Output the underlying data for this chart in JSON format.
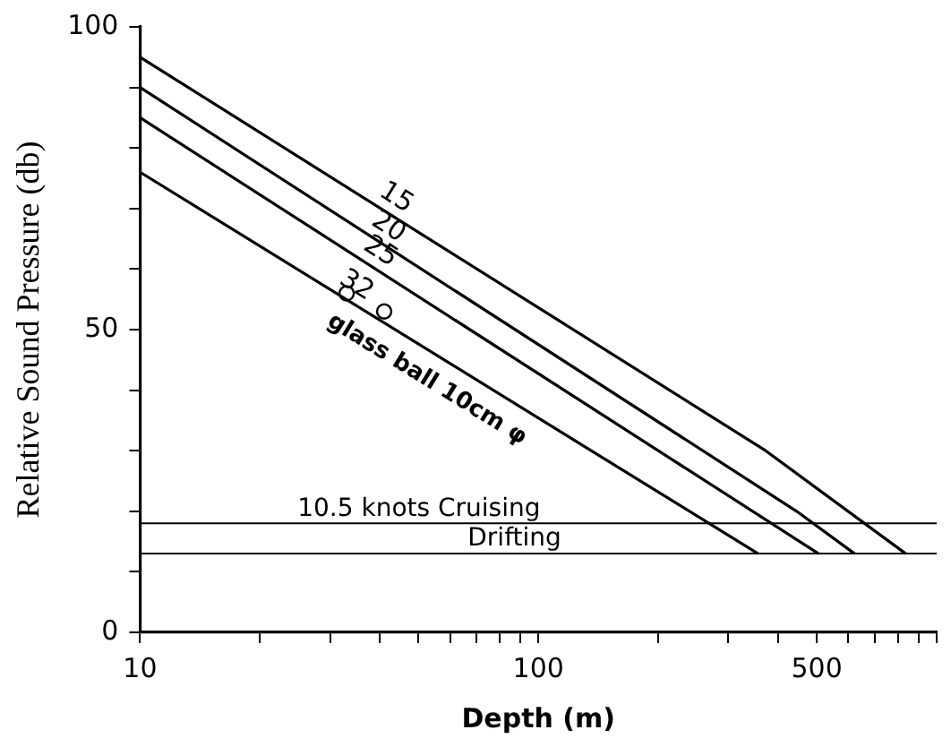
{
  "chart_data": {
    "type": "line",
    "xlabel": "Depth (m)",
    "ylabel": "Relative Sound Pressure (db)",
    "log": "x",
    "xlim": [
      10,
      1000
    ],
    "ylim": [
      0,
      100
    ],
    "xticks": [
      10,
      {
        "value": 20,
        "label": null
      },
      {
        "value": 30,
        "label": null
      },
      {
        "value": 40,
        "label": null
      },
      {
        "value": 50,
        "label": null
      },
      {
        "value": 60,
        "label": null
      },
      {
        "value": 70,
        "label": null
      },
      {
        "value": 80,
        "label": null
      },
      {
        "value": 90,
        "label": null
      },
      100,
      {
        "value": 200,
        "label": null
      },
      {
        "value": 300,
        "label": null
      },
      {
        "value": 400,
        "label": null
      },
      500,
      {
        "value": 600,
        "label": null
      },
      {
        "value": 700,
        "label": null
      },
      {
        "value": 800,
        "label": null
      },
      {
        "value": 900,
        "label": null
      },
      {
        "value": 1000,
        "label": null
      }
    ],
    "yticks": [
      0,
      {
        "value": 10,
        "label": null
      },
      {
        "value": 20,
        "label": null
      },
      {
        "value": 30,
        "label": null
      },
      {
        "value": 40,
        "label": null
      },
      50,
      {
        "value": 60,
        "label": null
      },
      {
        "value": 70,
        "label": null
      },
      {
        "value": 80,
        "label": null
      },
      {
        "value": 90,
        "label": null
      },
      100
    ],
    "grid": false,
    "legend": false,
    "marker": "none",
    "line_style": "solid",
    "series": [
      {
        "name": "15",
        "color": "#000000",
        "x": [
          10,
          372,
          836
        ],
        "values": [
          95,
          30,
          13
        ]
      },
      {
        "name": "20",
        "color": "#000000",
        "x": [
          10,
          445,
          622
        ],
        "values": [
          90,
          20,
          13
        ]
      },
      {
        "name": "25",
        "color": "#000000",
        "x": [
          10,
          505
        ],
        "values": [
          85,
          13
        ]
      },
      {
        "name": "32",
        "color": "#000000",
        "x": [
          10,
          356
        ],
        "values": [
          76,
          13
        ]
      },
      {
        "type": "scatter",
        "marker": "circle",
        "color": "#000000",
        "x": [
          33,
          41
        ],
        "values": [
          56,
          53
        ]
      }
    ],
    "ref_lines": [
      {
        "axis": "y",
        "value": 18,
        "label": "10.5 knots Cruising",
        "color": "#000000"
      },
      {
        "axis": "y",
        "value": 13,
        "label": "Drifting",
        "color": "#000000"
      }
    ],
    "annotations": [
      "glass ball 10cm φ"
    ]
  }
}
